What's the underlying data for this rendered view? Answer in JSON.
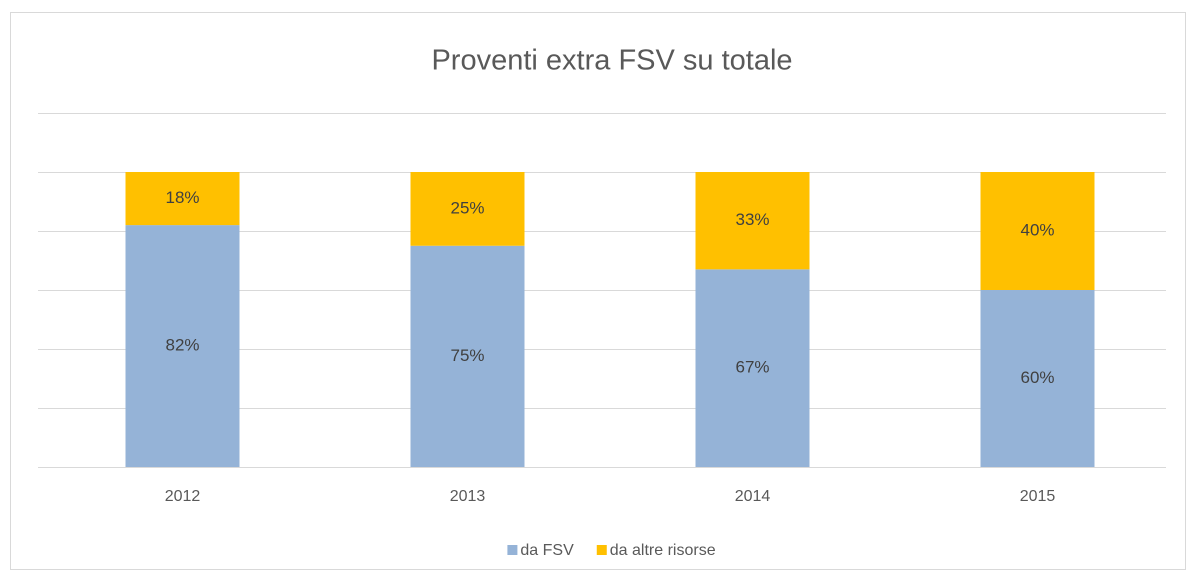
{
  "chart_data": {
    "type": "stacked_bar",
    "title": "Proventi extra FSV su totale",
    "categories": [
      "2012",
      "2013",
      "2014",
      "2015"
    ],
    "series": [
      {
        "name": "da FSV",
        "color": "#95b3d7",
        "values": [
          82,
          75,
          67,
          60
        ],
        "value_labels": [
          "82%",
          "75%",
          "67%",
          "60%"
        ]
      },
      {
        "name": "da altre risorse",
        "color": "#ffc000",
        "values": [
          18,
          25,
          33,
          40
        ],
        "value_labels": [
          "18%",
          "25%",
          "33%",
          "40%"
        ]
      }
    ],
    "ylim": [
      0,
      120
    ],
    "yticks": [
      0,
      20,
      40,
      60,
      80,
      100,
      120
    ],
    "grid": true,
    "legend": "bottom"
  }
}
